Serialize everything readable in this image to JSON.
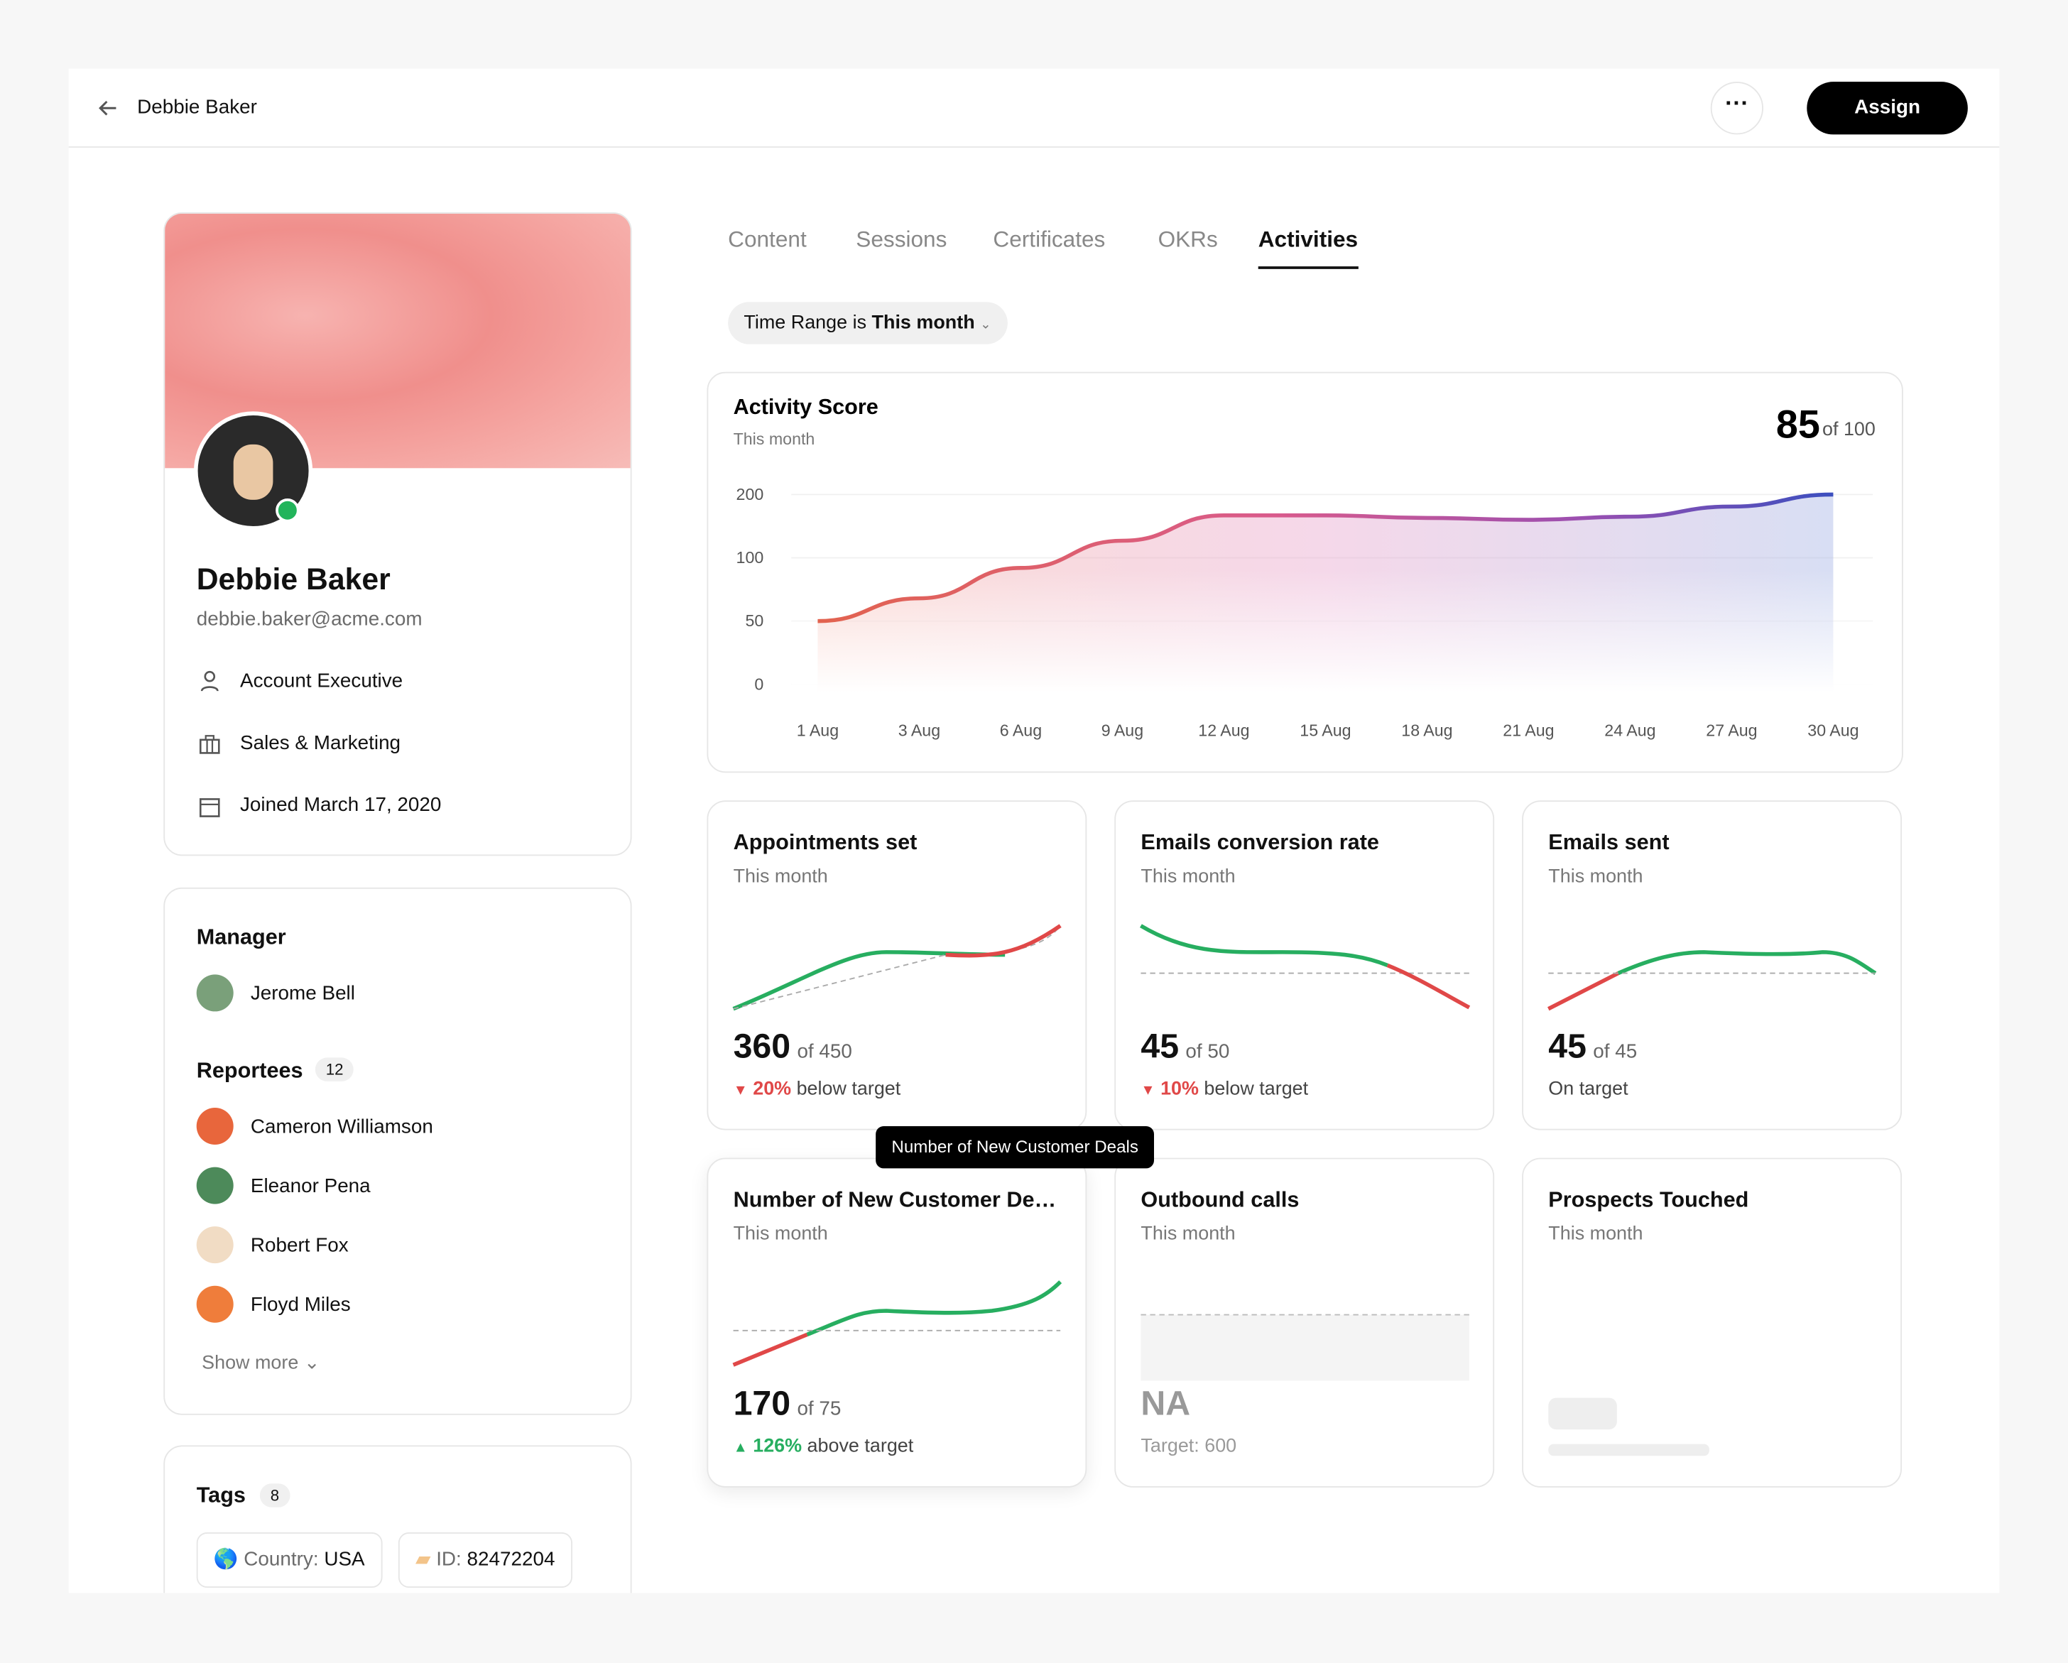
{
  "header": {
    "title": "Debbie Baker",
    "action": "Assign"
  },
  "profile": {
    "name": "Debbie Baker",
    "email": "debbie.baker@acme.com",
    "details": [
      "Account Executive",
      "Sales & Marketing",
      "Joined March 17, 2020"
    ]
  },
  "manager": {
    "title": "Manager",
    "name": "Jerome Bell"
  },
  "reportees": {
    "title": "Reportees",
    "count": "12",
    "people": [
      "Cameron Williamson",
      "Eleanor Pena",
      "Robert Fox",
      "Floyd Miles"
    ],
    "show_more": "Show more"
  },
  "tags": {
    "title": "Tags",
    "count": "8",
    "items": [
      {
        "key": "Country:",
        "value": "USA"
      },
      {
        "key": "ID:",
        "value": "82472204"
      }
    ]
  },
  "tabs": [
    "Content",
    "Sessions",
    "Certificates",
    "OKRs",
    "Activities"
  ],
  "filter": {
    "label": "Time Range is",
    "value": "This month"
  },
  "chart_data": {
    "type": "area",
    "title": "Activity Score",
    "subtitle": "This month",
    "score": 85,
    "score_of": "of 100",
    "categories": [
      "1 Aug",
      "3 Aug",
      "6 Aug",
      "9 Aug",
      "12 Aug",
      "15 Aug",
      "18 Aug",
      "21 Aug",
      "24 Aug",
      "27 Aug",
      "30 Aug"
    ],
    "values": [
      50,
      68,
      92,
      127,
      167,
      167,
      163,
      160,
      165,
      181,
      200
    ],
    "ylim": [
      0,
      200
    ],
    "yticks": [
      0,
      50,
      100,
      200
    ]
  },
  "cards": [
    {
      "title": "Appointments set",
      "subtitle": "This month",
      "value": "360",
      "target": "of 450",
      "change": "20%",
      "change_label": "below target"
    },
    {
      "title": "Emails conversion rate",
      "subtitle": "This month",
      "value": "45",
      "target": "of 50",
      "change": "10%",
      "change_label": "below target"
    },
    {
      "title": "Emails sent",
      "subtitle": "This month",
      "value": "45",
      "target": "of 45",
      "change_label": "On target"
    },
    {
      "title": "Number of New Customer Deals",
      "subtitle": "This month",
      "value": "170",
      "target": "of 75",
      "change": "126%",
      "change_label": "above target"
    },
    {
      "title": "Outbound calls",
      "subtitle": "This month",
      "value": "NA",
      "target": "Target: 600"
    },
    {
      "title": "Prospects Touched",
      "subtitle": "This month"
    }
  ],
  "tooltip": "Number of New Customer Deals"
}
